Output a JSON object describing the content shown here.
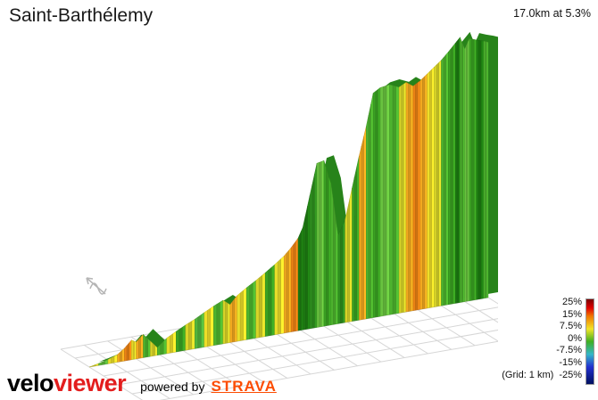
{
  "header": {
    "title": "Saint-Barthélemy",
    "summary": "17.0km at 5.3%"
  },
  "legend": {
    "labels": [
      "25%",
      "15%",
      "7.5%",
      "0%",
      "-7.5%",
      "-15%"
    ],
    "min_label": "-25%",
    "grid_note": "(Grid: 1 km)"
  },
  "footer": {
    "logo_black": "velo",
    "logo_red": "viewer",
    "powered_by": "powered by",
    "strava": "STRAVA"
  },
  "colors": {
    "strava_orange": "#fc4c02",
    "logo_red": "#e31e1e",
    "grid_line": "#d6d6d6",
    "side_face": "#27831a",
    "compass_gray": "#b5b5b5"
  },
  "chart_data": {
    "type": "area",
    "title": "Saint-Barthélemy",
    "subtitle": "3D elevation profile colored by gradient",
    "distance_km": 17.0,
    "avg_gradient_pct": 5.3,
    "grid_km": 1,
    "x_unit": "km",
    "y_unit": "m",
    "elevation_start_m": 645,
    "elevation_max_m": 1590,
    "elevation_end_m": 1555,
    "gradient_scale": [
      {
        "pct": 25,
        "color": "#7a0000"
      },
      {
        "pct": 20,
        "color": "#e00000"
      },
      {
        "pct": 15,
        "color": "#f07800"
      },
      {
        "pct": 7.5,
        "color": "#f2e428"
      },
      {
        "pct": 0,
        "color": "#3fae23"
      },
      {
        "pct": -7.5,
        "color": "#35b6c8"
      },
      {
        "pct": -15,
        "color": "#2330cf"
      },
      {
        "pct": -25,
        "color": "#001060"
      }
    ],
    "points": [
      {
        "km": 0.0,
        "elev_m": 645,
        "color": "#cfc928"
      },
      {
        "km": 0.4,
        "elev_m": 652,
        "color": "#d8d428"
      },
      {
        "km": 0.8,
        "elev_m": 660,
        "color": "#5cb83a"
      },
      {
        "km": 1.2,
        "elev_m": 672,
        "color": "#e8dd2a"
      },
      {
        "km": 1.5,
        "elev_m": 690,
        "color": "#f2a81f"
      },
      {
        "km": 1.8,
        "elev_m": 715,
        "color": "#ea8214"
      },
      {
        "km": 2.0,
        "elev_m": 705,
        "color": "#f0e32b"
      },
      {
        "km": 2.3,
        "elev_m": 728,
        "color": "#f2a81f"
      },
      {
        "km": 2.6,
        "elev_m": 700,
        "color": "#4db32e"
      },
      {
        "km": 2.9,
        "elev_m": 672,
        "color": "#d8d428"
      },
      {
        "km": 3.3,
        "elev_m": 700,
        "color": "#4db32e"
      },
      {
        "km": 3.7,
        "elev_m": 718,
        "color": "#e8dd2a"
      },
      {
        "km": 4.1,
        "elev_m": 735,
        "color": "#3aa122"
      },
      {
        "km": 4.5,
        "elev_m": 750,
        "color": "#d8d428"
      },
      {
        "km": 4.9,
        "elev_m": 768,
        "color": "#52b43c"
      },
      {
        "km": 5.3,
        "elev_m": 785,
        "color": "#eede29"
      },
      {
        "km": 5.7,
        "elev_m": 800,
        "color": "#4db32e"
      },
      {
        "km": 6.0,
        "elev_m": 780,
        "color": "#d8d428"
      },
      {
        "km": 6.3,
        "elev_m": 808,
        "color": "#f2a81f"
      },
      {
        "km": 6.7,
        "elev_m": 830,
        "color": "#e8dd2a"
      },
      {
        "km": 7.1,
        "elev_m": 850,
        "color": "#4db32e"
      },
      {
        "km": 7.5,
        "elev_m": 872,
        "color": "#d8d428"
      },
      {
        "km": 7.9,
        "elev_m": 895,
        "color": "#3aa122"
      },
      {
        "km": 8.3,
        "elev_m": 920,
        "color": "#e8dd2a"
      },
      {
        "km": 8.6,
        "elev_m": 945,
        "color": "#f2a81f"
      },
      {
        "km": 8.9,
        "elev_m": 975,
        "color": "#ea8214"
      },
      {
        "km": 9.1,
        "elev_m": 1010,
        "color": "#1e7d12"
      },
      {
        "km": 9.4,
        "elev_m": 1120,
        "color": "#1e7d12"
      },
      {
        "km": 9.7,
        "elev_m": 1230,
        "color": "#2e8f1f"
      },
      {
        "km": 10.0,
        "elev_m": 1235,
        "color": "#68c23f"
      },
      {
        "km": 10.3,
        "elev_m": 1150,
        "color": "#3aa122"
      },
      {
        "km": 10.6,
        "elev_m": 960,
        "color": "#4db32e"
      },
      {
        "km": 10.9,
        "elev_m": 1010,
        "color": "#2e8f1f"
      },
      {
        "km": 11.2,
        "elev_m": 1120,
        "color": "#d8d428"
      },
      {
        "km": 11.5,
        "elev_m": 1230,
        "color": "#3aa122"
      },
      {
        "km": 11.8,
        "elev_m": 1330,
        "color": "#f2a81f"
      },
      {
        "km": 12.1,
        "elev_m": 1445,
        "color": "#4db32e"
      },
      {
        "km": 12.4,
        "elev_m": 1460,
        "color": "#3aa122"
      },
      {
        "km": 12.8,
        "elev_m": 1465,
        "color": "#68c23f"
      },
      {
        "km": 13.2,
        "elev_m": 1450,
        "color": "#4db32e"
      },
      {
        "km": 13.5,
        "elev_m": 1463,
        "color": "#d8d428"
      },
      {
        "km": 13.8,
        "elev_m": 1445,
        "color": "#f2a81f"
      },
      {
        "km": 14.1,
        "elev_m": 1460,
        "color": "#ea8214"
      },
      {
        "km": 14.4,
        "elev_m": 1480,
        "color": "#f2a81f"
      },
      {
        "km": 14.7,
        "elev_m": 1500,
        "color": "#eede29"
      },
      {
        "km": 15.0,
        "elev_m": 1520,
        "color": "#d8d428"
      },
      {
        "km": 15.3,
        "elev_m": 1545,
        "color": "#4db32e"
      },
      {
        "km": 15.6,
        "elev_m": 1572,
        "color": "#3aa122"
      },
      {
        "km": 15.8,
        "elev_m": 1590,
        "color": "#1e7d12"
      },
      {
        "km": 16.0,
        "elev_m": 1545,
        "color": "#4db32e"
      },
      {
        "km": 16.2,
        "elev_m": 1580,
        "color": "#68c23f"
      },
      {
        "km": 16.5,
        "elev_m": 1570,
        "color": "#3aa122"
      },
      {
        "km": 16.8,
        "elev_m": 1562,
        "color": "#1e7d12"
      },
      {
        "km": 17.0,
        "elev_m": 1555,
        "color": "#4db32e"
      }
    ]
  }
}
